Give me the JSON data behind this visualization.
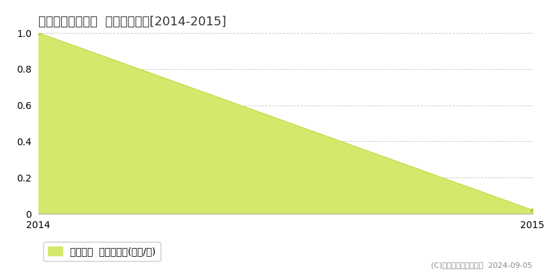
{
  "title": "豊能郡能勢町稲地  土地価格推移[2014-2015]",
  "x_values": [
    2014,
    2015
  ],
  "y_values": [
    1.0,
    0.02
  ],
  "fill_color": "#d4e96b",
  "line_color": "#c8dc50",
  "marker_color": "#b8cc40",
  "background_color": "#ffffff",
  "plot_bg_color": "#ffffff",
  "grid_color": "#cccccc",
  "xlim": [
    2014,
    2015
  ],
  "ylim": [
    0,
    1.0
  ],
  "yticks": [
    0,
    0.2,
    0.4,
    0.6,
    0.8,
    1.0
  ],
  "xticks": [
    2014,
    2015
  ],
  "legend_label": "土地価格  平均坪単価(万円/坪)",
  "copyright_text": "(C)土地価格ドットコム  2024-09-05",
  "title_fontsize": 13,
  "tick_fontsize": 10,
  "legend_fontsize": 10,
  "copyright_fontsize": 8
}
